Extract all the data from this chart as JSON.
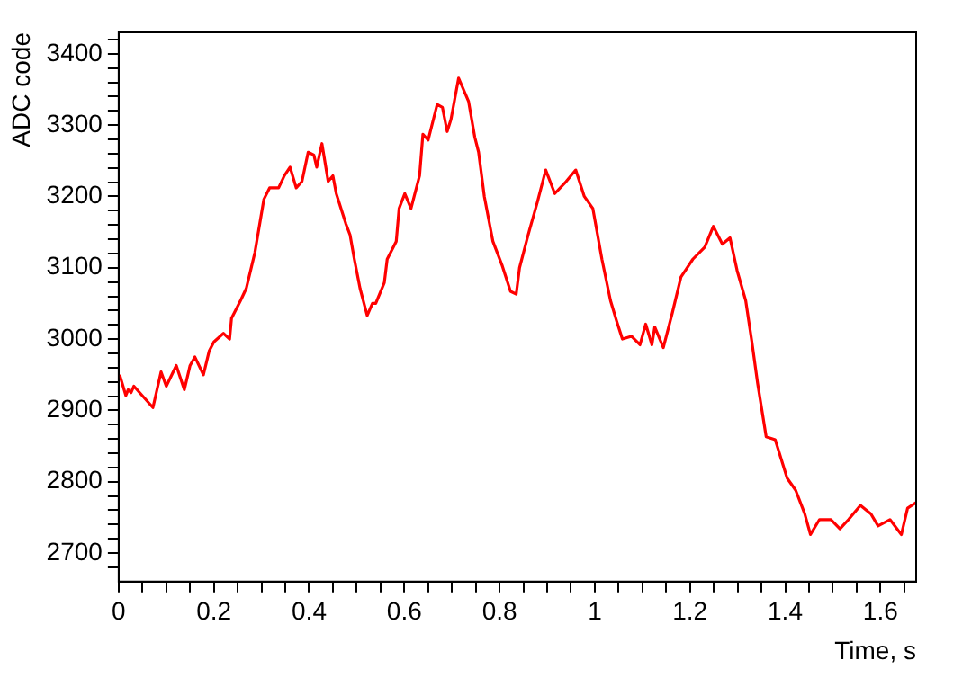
{
  "chart_data": {
    "type": "line",
    "xlabel": "Time, s",
    "ylabel": "ADC code",
    "xlim": [
      0,
      1.675
    ],
    "ylim": [
      2660,
      3430
    ],
    "xticks": [
      0,
      {
        "value": 0.05,
        "label": null
      },
      {
        "value": 0.1,
        "label": null
      },
      {
        "value": 0.15,
        "label": null
      },
      0.2,
      {
        "value": 0.25,
        "label": null
      },
      {
        "value": 0.3,
        "label": null
      },
      {
        "value": 0.35,
        "label": null
      },
      0.4,
      {
        "value": 0.45,
        "label": null
      },
      {
        "value": 0.5,
        "label": null
      },
      {
        "value": 0.55,
        "label": null
      },
      0.6,
      {
        "value": 0.65,
        "label": null
      },
      {
        "value": 0.7,
        "label": null
      },
      {
        "value": 0.75,
        "label": null
      },
      0.8,
      {
        "value": 0.85,
        "label": null
      },
      {
        "value": 0.9,
        "label": null
      },
      {
        "value": 0.95,
        "label": null
      },
      1,
      {
        "value": 1.05,
        "label": null
      },
      {
        "value": 1.1,
        "label": null
      },
      {
        "value": 1.15,
        "label": null
      },
      1.2,
      {
        "value": 1.25,
        "label": null
      },
      {
        "value": 1.3,
        "label": null
      },
      {
        "value": 1.35,
        "label": null
      },
      1.4,
      {
        "value": 1.45,
        "label": null
      },
      {
        "value": 1.5,
        "label": null
      },
      {
        "value": 1.55,
        "label": null
      },
      1.6,
      {
        "value": 1.65,
        "label": null
      }
    ],
    "yticks": [
      {
        "value": 2680,
        "label": null
      },
      2700,
      {
        "value": 2720,
        "label": null
      },
      {
        "value": 2740,
        "label": null
      },
      {
        "value": 2760,
        "label": null
      },
      {
        "value": 2780,
        "label": null
      },
      2800,
      {
        "value": 2820,
        "label": null
      },
      {
        "value": 2840,
        "label": null
      },
      {
        "value": 2860,
        "label": null
      },
      {
        "value": 2880,
        "label": null
      },
      2900,
      {
        "value": 2920,
        "label": null
      },
      {
        "value": 2940,
        "label": null
      },
      {
        "value": 2960,
        "label": null
      },
      {
        "value": 2980,
        "label": null
      },
      3000,
      {
        "value": 3020,
        "label": null
      },
      {
        "value": 3040,
        "label": null
      },
      {
        "value": 3060,
        "label": null
      },
      {
        "value": 3080,
        "label": null
      },
      3100,
      {
        "value": 3120,
        "label": null
      },
      {
        "value": 3140,
        "label": null
      },
      {
        "value": 3160,
        "label": null
      },
      {
        "value": 3180,
        "label": null
      },
      3200,
      {
        "value": 3220,
        "label": null
      },
      {
        "value": 3240,
        "label": null
      },
      {
        "value": 3260,
        "label": null
      },
      {
        "value": 3280,
        "label": null
      },
      3300,
      {
        "value": 3320,
        "label": null
      },
      {
        "value": 3340,
        "label": null
      },
      {
        "value": 3360,
        "label": null
      },
      {
        "value": 3380,
        "label": null
      },
      3400,
      {
        "value": 3420,
        "label": null
      }
    ],
    "grid": false,
    "legend": false,
    "marker": "none",
    "line_style": "solid",
    "series": [
      {
        "color": "#ff0000",
        "x": [
          0.002,
          0.015,
          0.02,
          0.026,
          0.032,
          0.072,
          0.089,
          0.1,
          0.121,
          0.138,
          0.15,
          0.16,
          0.178,
          0.19,
          0.2,
          0.22,
          0.233,
          0.237,
          0.256,
          0.268,
          0.286,
          0.305,
          0.317,
          0.336,
          0.348,
          0.36,
          0.373,
          0.385,
          0.398,
          0.41,
          0.416,
          0.427,
          0.44,
          0.45,
          0.457,
          0.477,
          0.486,
          0.495,
          0.507,
          0.522,
          0.533,
          0.54,
          0.558,
          0.564,
          0.583,
          0.589,
          0.601,
          0.614,
          0.632,
          0.639,
          0.65,
          0.669,
          0.68,
          0.69,
          0.698,
          0.714,
          0.735,
          0.748,
          0.756,
          0.768,
          0.786,
          0.805,
          0.823,
          0.835,
          0.842,
          0.86,
          0.879,
          0.897,
          0.916,
          0.94,
          0.96,
          0.978,
          0.996,
          1.015,
          1.033,
          1.046,
          1.058,
          1.077,
          1.095,
          1.107,
          1.12,
          1.126,
          1.144,
          1.163,
          1.181,
          1.206,
          1.231,
          1.249,
          1.268,
          1.284,
          1.299,
          1.317,
          1.33,
          1.342,
          1.36,
          1.379,
          1.404,
          1.422,
          1.441,
          1.453,
          1.472,
          1.496,
          1.515,
          1.533,
          1.558,
          1.58,
          1.595,
          1.62,
          1.644,
          1.657,
          1.675
        ],
        "values": [
          2950,
          2921,
          2929,
          2925,
          2934,
          2904,
          2954,
          2934,
          2963,
          2929,
          2963,
          2975,
          2950,
          2983,
          2996,
          3008,
          3000,
          3029,
          3054,
          3071,
          3121,
          3196,
          3212,
          3212,
          3229,
          3241,
          3212,
          3221,
          3262,
          3258,
          3241,
          3274,
          3221,
          3229,
          3204,
          3162,
          3146,
          3112,
          3071,
          3033,
          3050,
          3050,
          3079,
          3112,
          3137,
          3183,
          3204,
          3183,
          3229,
          3287,
          3279,
          3329,
          3325,
          3291,
          3308,
          3366,
          3333,
          3283,
          3262,
          3200,
          3137,
          3104,
          3067,
          3063,
          3100,
          3146,
          3191,
          3237,
          3204,
          3221,
          3237,
          3200,
          3183,
          3112,
          3054,
          3025,
          3000,
          3004,
          2992,
          3021,
          2992,
          3017,
          2988,
          3037,
          3087,
          3112,
          3129,
          3158,
          3133,
          3142,
          3096,
          3054,
          2996,
          2938,
          2863,
          2859,
          2805,
          2788,
          2755,
          2726,
          2747,
          2747,
          2734,
          2747,
          2767,
          2755,
          2738,
          2747,
          2726,
          2763,
          2771
        ]
      }
    ]
  }
}
